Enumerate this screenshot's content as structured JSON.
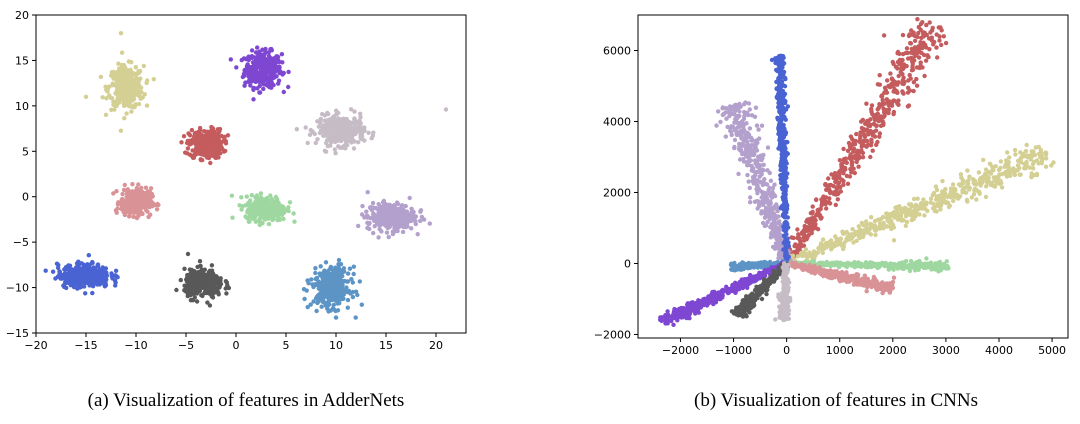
{
  "chart_data": [
    {
      "type": "scatter",
      "id": "adder",
      "caption": "(a) Visualization of features in AdderNets",
      "xlim": [
        -20,
        23
      ],
      "ylim": [
        -15,
        20
      ],
      "xticks": [
        -20,
        -15,
        -10,
        -5,
        0,
        5,
        10,
        15,
        20
      ],
      "yticks": [
        -15,
        -10,
        -5,
        0,
        5,
        10,
        15,
        20
      ],
      "clusters": [
        {
          "name": "purple",
          "color": "#7e47d2",
          "cx": 2.7,
          "cy": 14.0,
          "rx": 2.2,
          "ry": 2.3,
          "n": 340
        },
        {
          "name": "khaki",
          "color": "#d4cf93",
          "cx": -11.0,
          "cy": 12.0,
          "rx": 2.1,
          "ry": 2.8,
          "n": 340
        },
        {
          "name": "red",
          "color": "#c45c5e",
          "cx": -3.0,
          "cy": 5.8,
          "rx": 2.0,
          "ry": 1.9,
          "n": 300
        },
        {
          "name": "silver",
          "color": "#c6bcc6",
          "cx": 10.5,
          "cy": 7.3,
          "rx": 2.8,
          "ry": 1.9,
          "n": 330
        },
        {
          "name": "pink",
          "color": "#d99295",
          "cx": -10.0,
          "cy": -0.6,
          "rx": 1.8,
          "ry": 1.8,
          "n": 300
        },
        {
          "name": "green",
          "color": "#9fd7a0",
          "cx": 3.0,
          "cy": -1.3,
          "rx": 2.4,
          "ry": 1.6,
          "n": 320
        },
        {
          "name": "lavender",
          "color": "#b3a0cc",
          "cx": 15.5,
          "cy": -2.2,
          "rx": 2.8,
          "ry": 1.8,
          "n": 330
        },
        {
          "name": "blue",
          "color": "#4a63d3",
          "cx": -15.2,
          "cy": -8.7,
          "rx": 3.1,
          "ry": 1.5,
          "n": 360
        },
        {
          "name": "dark",
          "color": "#595959",
          "cx": -3.2,
          "cy": -9.6,
          "rx": 2.3,
          "ry": 1.8,
          "n": 330
        },
        {
          "name": "steelblue",
          "color": "#5c95c5",
          "cx": 9.5,
          "cy": -10.0,
          "rx": 2.3,
          "ry": 2.6,
          "n": 330
        }
      ],
      "outliers": [
        [
          -11.5,
          18.0
        ],
        [
          21.0,
          9.6
        ],
        [
          -15.0,
          11.0
        ],
        [
          -4.8,
          -6.3
        ],
        [
          10.0,
          -13.3
        ],
        [
          18.5,
          -1.5
        ]
      ]
    },
    {
      "type": "scatter",
      "id": "cnn",
      "caption": "(b) Visualization of features in CNNs",
      "xlim": [
        -2800,
        5300
      ],
      "ylim": [
        -2100,
        7000
      ],
      "xticks": [
        -2000,
        -1000,
        0,
        1000,
        2000,
        3000,
        4000,
        5000
      ],
      "yticks": [
        -2000,
        0,
        2000,
        4000,
        6000
      ],
      "rays": [
        {
          "name": "red",
          "color": "#c45c5e",
          "end": [
            2800,
            6750
          ],
          "width": 190,
          "n": 520
        },
        {
          "name": "khaki",
          "color": "#d4cf93",
          "end": [
            4900,
            3100
          ],
          "width": 190,
          "n": 520
        },
        {
          "name": "lavender",
          "color": "#b3a0cc",
          "end": [
            -1000,
            4500
          ],
          "width": 170,
          "n": 420
        },
        {
          "name": "blue",
          "color": "#4a63d3",
          "end": [
            -130,
            5850
          ],
          "width": 55,
          "n": 380
        },
        {
          "name": "green",
          "color": "#9fd7a0",
          "end": [
            3050,
            -80
          ],
          "width": 60,
          "n": 330
        },
        {
          "name": "pink",
          "color": "#d99295",
          "end": [
            2000,
            -700
          ],
          "width": 90,
          "n": 300
        },
        {
          "name": "steelblue",
          "color": "#5c95c5",
          "end": [
            -1050,
            -100
          ],
          "width": 60,
          "n": 200
        },
        {
          "name": "purple",
          "color": "#7e47d2",
          "end": [
            -2350,
            -1650
          ],
          "width": 85,
          "n": 420
        },
        {
          "name": "dark",
          "color": "#595959",
          "end": [
            -950,
            -1450
          ],
          "width": 70,
          "n": 250
        },
        {
          "name": "silver",
          "color": "#c6bcc6",
          "end": [
            -80,
            -1600
          ],
          "width": 55,
          "n": 220
        }
      ]
    }
  ]
}
